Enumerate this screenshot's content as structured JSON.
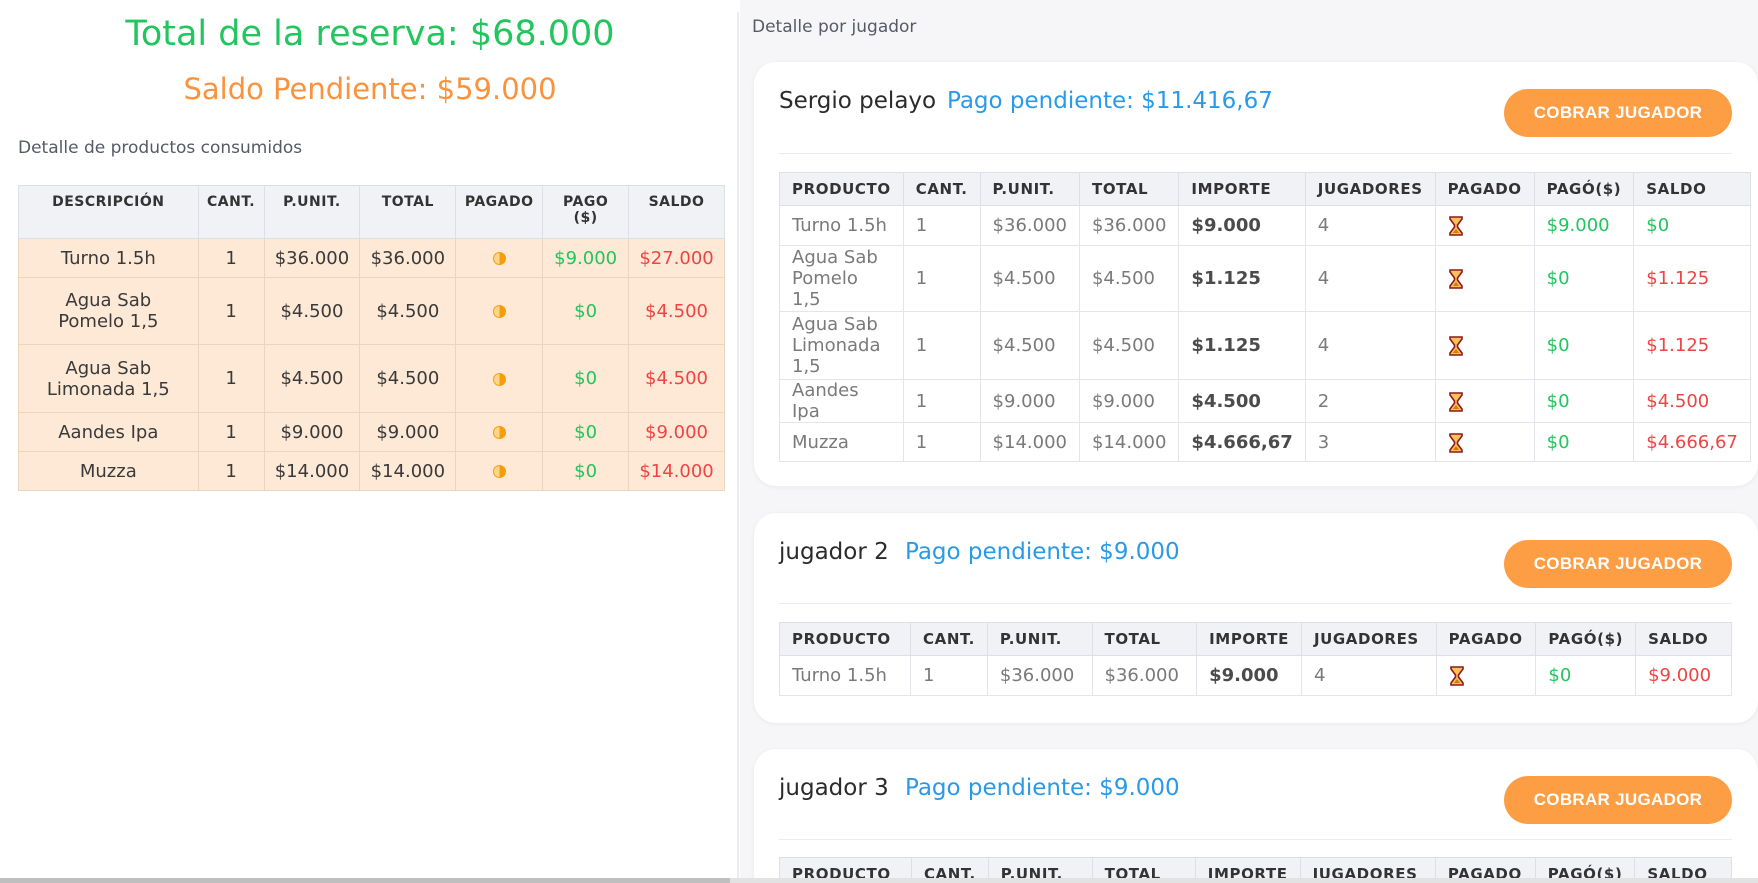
{
  "summary": {
    "total_label": "Total de la reserva: $68.000",
    "saldo_label": "Saldo Pendiente: $59.000"
  },
  "products_section": {
    "title": "Detalle de productos consumidos",
    "headers": [
      "DESCRIPCIÓN",
      "CANT.",
      "P.UNIT.",
      "TOTAL",
      "PAGADO",
      "PAGO ($)",
      "SALDO"
    ],
    "rows": [
      {
        "desc": "Turno 1.5h",
        "cant": "1",
        "punit": "$36.000",
        "total": "$36.000",
        "pago": "$9.000",
        "saldo": "$27.000"
      },
      {
        "desc": "Agua Sab Pomelo 1,5",
        "cant": "1",
        "punit": "$4.500",
        "total": "$4.500",
        "pago": "$0",
        "saldo": "$4.500"
      },
      {
        "desc": "Agua Sab Limonada 1,5",
        "cant": "1",
        "punit": "$4.500",
        "total": "$4.500",
        "pago": "$0",
        "saldo": "$4.500"
      },
      {
        "desc": "Aandes Ipa",
        "cant": "1",
        "punit": "$9.000",
        "total": "$9.000",
        "pago": "$0",
        "saldo": "$9.000"
      },
      {
        "desc": "Muzza",
        "cant": "1",
        "punit": "$14.000",
        "total": "$14.000",
        "pago": "$0",
        "saldo": "$14.000"
      }
    ],
    "paid_icon": "half-circle-icon"
  },
  "players_section": {
    "title": "Detalle por jugador",
    "headers": [
      "PRODUCTO",
      "CANT.",
      "P.UNIT.",
      "TOTAL",
      "IMPORTE",
      "JUGADORES",
      "PAGADO",
      "PAGÓ($)",
      "SALDO"
    ],
    "cobrar_label": "COBRAR JUGADOR",
    "pending_icon": "hourglass-icon",
    "players": [
      {
        "name": "Sergio pelayo",
        "pending": "Pago pendiente: $11.416,67",
        "rows": [
          {
            "producto": "Turno 1.5h",
            "cant": "1",
            "punit": "$36.000",
            "total": "$36.000",
            "importe": "$9.000",
            "jugadores": "4",
            "pago": "$9.000",
            "saldo": "$0"
          },
          {
            "producto": "Agua Sab Pomelo 1,5",
            "cant": "1",
            "punit": "$4.500",
            "total": "$4.500",
            "importe": "$1.125",
            "jugadores": "4",
            "pago": "$0",
            "saldo": "$1.125"
          },
          {
            "producto": "Agua Sab Limonada 1,5",
            "cant": "1",
            "punit": "$4.500",
            "total": "$4.500",
            "importe": "$1.125",
            "jugadores": "4",
            "pago": "$0",
            "saldo": "$1.125"
          },
          {
            "producto": "Aandes Ipa",
            "cant": "1",
            "punit": "$9.000",
            "total": "$9.000",
            "importe": "$4.500",
            "jugadores": "2",
            "pago": "$0",
            "saldo": "$4.500"
          },
          {
            "producto": "Muzza",
            "cant": "1",
            "punit": "$14.000",
            "total": "$14.000",
            "importe": "$4.666,67",
            "jugadores": "3",
            "pago": "$0",
            "saldo": "$4.666,67"
          }
        ]
      },
      {
        "name": "jugador 2",
        "pending": "Pago pendiente: $9.000",
        "rows": [
          {
            "producto": "Turno 1.5h",
            "cant": "1",
            "punit": "$36.000",
            "total": "$36.000",
            "importe": "$9.000",
            "jugadores": "4",
            "pago": "$0",
            "saldo": "$9.000"
          }
        ]
      },
      {
        "name": "jugador 3",
        "pending": "Pago pendiente: $9.000",
        "rows": []
      }
    ]
  },
  "colors": {
    "total_green": "#22c55e",
    "saldo_orange": "#fb923c",
    "pending_blue": "#2a9ae8",
    "button_orange": "#fd9e45",
    "paid_green": "#22c55e",
    "due_red": "#ef4444",
    "row_highlight": "#fde9d5"
  }
}
